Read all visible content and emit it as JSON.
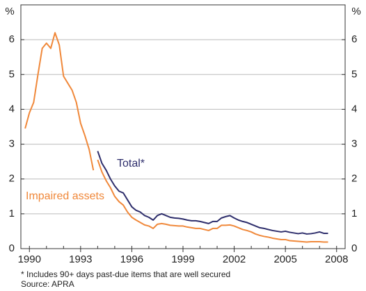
{
  "chart_data": {
    "type": "line",
    "y_unit": "%",
    "notes": [
      "* Includes 90+ days past-due items that are well secured",
      "Source: APRA"
    ],
    "x": [
      1989.75,
      1990,
      1990.25,
      1990.5,
      1990.75,
      1991,
      1991.25,
      1991.5,
      1991.75,
      1992,
      1992.25,
      1992.5,
      1992.75,
      1993,
      1993.25,
      1993.5,
      1993.75,
      1993.875,
      1994,
      1994.25,
      1994.5,
      1994.75,
      1995,
      1995.25,
      1995.5,
      1995.75,
      1996,
      1996.25,
      1996.5,
      1996.75,
      1997,
      1997.25,
      1997.5,
      1997.75,
      1998,
      1998.25,
      1998.5,
      1998.75,
      1999,
      1999.25,
      1999.5,
      1999.75,
      2000,
      2000.25,
      2000.5,
      2000.75,
      2001,
      2001.25,
      2001.5,
      2001.75,
      2002,
      2002.25,
      2002.5,
      2002.75,
      2003,
      2003.25,
      2003.5,
      2003.75,
      2004,
      2004.25,
      2004.5,
      2004.75,
      2005,
      2005.25,
      2005.5,
      2005.75,
      2006,
      2006.25,
      2006.5,
      2006.75,
      2007,
      2007.25,
      2007.5
    ],
    "series": [
      {
        "name": "Impaired assets",
        "color": "#f0883a",
        "values": [
          3.45,
          3.9,
          4.2,
          5.0,
          5.75,
          5.9,
          5.75,
          6.2,
          5.85,
          4.95,
          4.75,
          4.55,
          4.2,
          3.6,
          3.25,
          2.85,
          2.25,
          null,
          2.55,
          2.2,
          1.95,
          1.75,
          1.5,
          1.35,
          1.25,
          1.05,
          0.9,
          0.82,
          0.75,
          0.68,
          0.65,
          0.58,
          0.7,
          0.72,
          0.7,
          0.67,
          0.66,
          0.65,
          0.65,
          0.62,
          0.6,
          0.58,
          0.58,
          0.55,
          0.52,
          0.58,
          0.58,
          0.67,
          0.67,
          0.68,
          0.65,
          0.6,
          0.55,
          0.52,
          0.48,
          0.42,
          0.38,
          0.35,
          0.33,
          0.3,
          0.28,
          0.26,
          0.26,
          0.23,
          0.22,
          0.21,
          0.2,
          0.19,
          0.2,
          0.2,
          0.2,
          0.19,
          0.19
        ]
      },
      {
        "name": "Total*",
        "color": "#2d2d6b",
        "values": [
          null,
          null,
          null,
          null,
          null,
          null,
          null,
          null,
          null,
          null,
          null,
          null,
          null,
          null,
          null,
          null,
          null,
          null,
          2.8,
          2.45,
          2.25,
          2.0,
          1.8,
          1.65,
          1.6,
          1.4,
          1.2,
          1.1,
          1.05,
          0.95,
          0.9,
          0.82,
          0.95,
          1.0,
          0.95,
          0.9,
          0.88,
          0.87,
          0.85,
          0.82,
          0.8,
          0.8,
          0.78,
          0.75,
          0.72,
          0.78,
          0.78,
          0.88,
          0.92,
          0.95,
          0.88,
          0.82,
          0.78,
          0.75,
          0.7,
          0.65,
          0.6,
          0.58,
          0.55,
          0.52,
          0.5,
          0.48,
          0.5,
          0.47,
          0.45,
          0.43,
          0.45,
          0.42,
          0.43,
          0.45,
          0.48,
          0.44,
          0.44
        ]
      }
    ],
    "xlim": [
      1989.5,
      2008.5
    ],
    "xticks": [
      1990,
      1993,
      1996,
      1999,
      2002,
      2005,
      2008
    ],
    "ylim": [
      0,
      7
    ],
    "yticks": [
      0,
      1,
      2,
      3,
      4,
      5,
      6
    ],
    "grid": true
  }
}
